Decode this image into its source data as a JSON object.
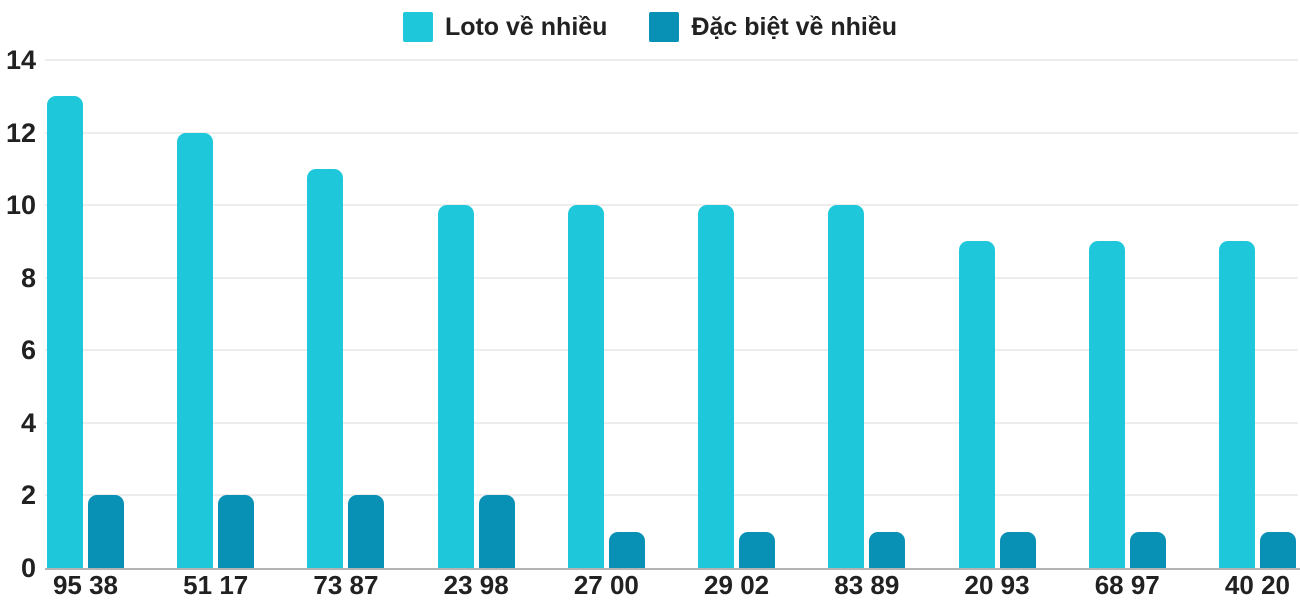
{
  "chart_data": {
    "type": "bar",
    "categories": [
      "95 38",
      "51 17",
      "73 87",
      "23 98",
      "27 00",
      "29 02",
      "83 89",
      "20 93",
      "68 97",
      "40 20"
    ],
    "series": [
      {
        "name": "Loto về nhiều",
        "color": "#1EC8DA",
        "values": [
          13,
          12,
          11,
          10,
          10,
          10,
          10,
          9,
          9,
          9
        ]
      },
      {
        "name": "Đặc biệt về nhiều",
        "color": "#0991B5",
        "values": [
          2,
          2,
          2,
          2,
          1,
          1,
          1,
          1,
          1,
          1
        ]
      }
    ],
    "ylim": [
      0,
      14
    ],
    "yticks": [
      0,
      2,
      4,
      6,
      8,
      10,
      12,
      14
    ],
    "grid": true,
    "legend_position": "top-center"
  },
  "colors": {
    "grid": "#ededed",
    "axis": "#b3b3b3",
    "text": "#212121",
    "background": "#ffffff"
  }
}
